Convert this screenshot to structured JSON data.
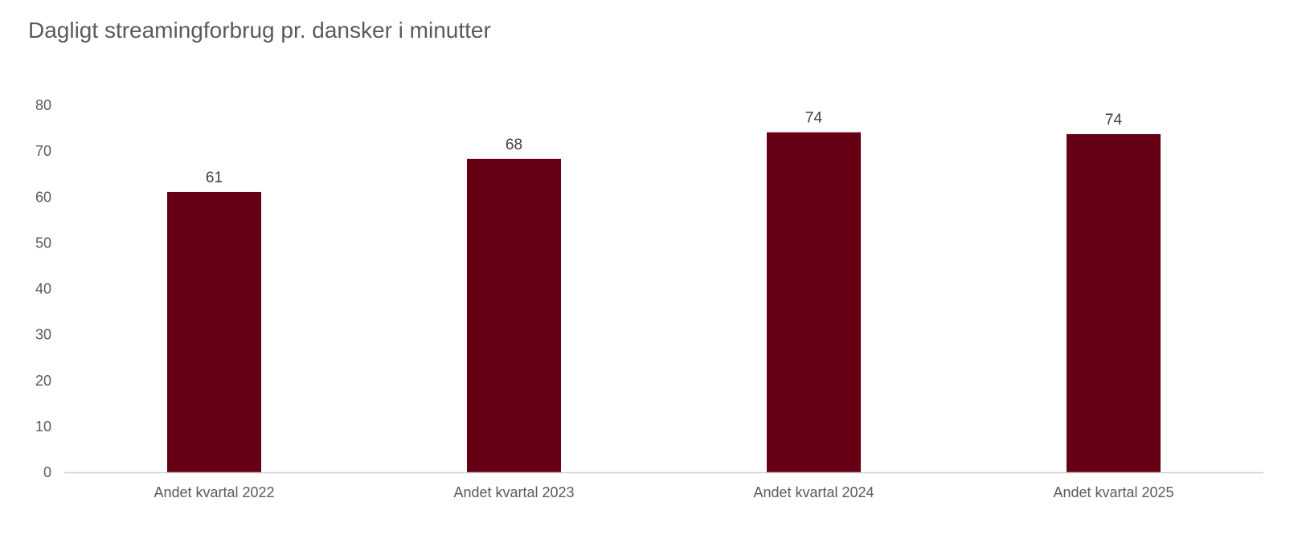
{
  "chart_data": {
    "type": "bar",
    "title": "Dagligt streamingforbrug pr. dansker i minutter",
    "xlabel": "",
    "ylabel": "",
    "categories": [
      "Andet kvartal 2022",
      "Andet kvartal 2023",
      "Andet kvartal 2024",
      "Andet kvartal 2025"
    ],
    "values": [
      61.1,
      68.3,
      74.1,
      73.7
    ],
    "data_labels": [
      "61",
      "68",
      "74",
      "74"
    ],
    "ylim": [
      0,
      80
    ],
    "yticks": [
      0,
      10,
      20,
      30,
      40,
      50,
      60,
      70,
      80
    ],
    "grid": false,
    "legend": "none",
    "bar_color": "#650015",
    "axis_color": "#d0d0d0"
  }
}
